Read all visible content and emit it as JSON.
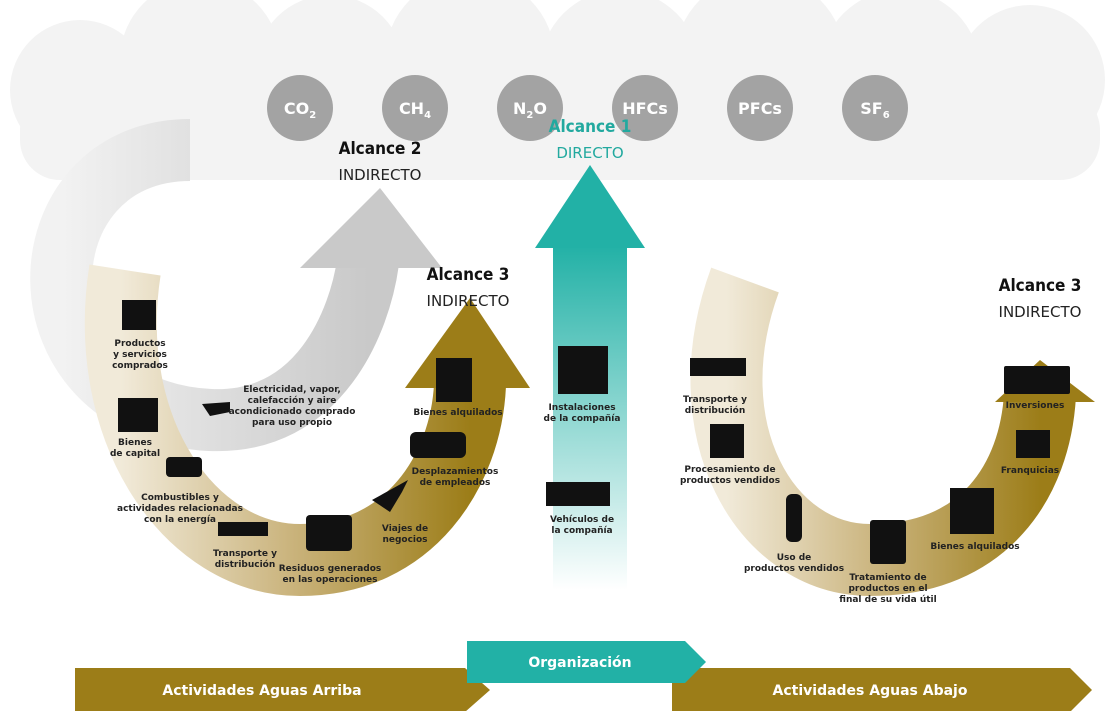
{
  "gases": [
    [
      "CO",
      "2"
    ],
    [
      "CH",
      "4"
    ],
    [
      "N",
      "2",
      "O"
    ],
    [
      "HFCs"
    ],
    [
      "PFCs"
    ],
    [
      "SF",
      "6"
    ]
  ],
  "scope1": {
    "title": "Alcance 1",
    "subtitle": "DIRECTO",
    "items": [
      [
        "Instalaciones",
        "de la compañía"
      ],
      [
        "Vehículos de",
        "la compañía"
      ]
    ]
  },
  "scope2": {
    "title": "Alcance 2",
    "subtitle": "INDIRECTO",
    "items": [
      [
        "Electricidad, vapor,",
        "calefacción y aire",
        "acondicionado comprado",
        "para uso propio"
      ]
    ]
  },
  "scope3_upstream": {
    "title": "Alcance 3",
    "subtitle": "INDIRECTO",
    "items": [
      [
        "Productos",
        "y servicios",
        "comprados"
      ],
      [
        "Bienes",
        "de capital"
      ],
      [
        "Combustibles y",
        "actividades relacionadas",
        "con la energía"
      ],
      [
        "Transporte y",
        "distribución"
      ],
      [
        "Residuos generados",
        "en las operaciones"
      ],
      [
        "Viajes de",
        "negocios"
      ],
      [
        "Desplazamientos",
        "de empleados"
      ],
      [
        "Bienes alquilados"
      ]
    ]
  },
  "scope3_downstream": {
    "title": "Alcance 3",
    "subtitle": "INDIRECTO",
    "items": [
      [
        "Transporte y",
        "distribución"
      ],
      [
        "Procesamiento de",
        "productos vendidos"
      ],
      [
        "Uso de",
        "productos vendidos"
      ],
      [
        "Tratamiento de",
        "productos en el",
        "final de su vida útil"
      ],
      [
        "Bienes alquilados"
      ],
      [
        "Franquicias"
      ],
      [
        "Inversiones"
      ]
    ]
  },
  "footer": {
    "upstream": "Actividades Aguas Arriba",
    "organization": "Organización",
    "downstream": "Actividades Aguas Abajo"
  }
}
